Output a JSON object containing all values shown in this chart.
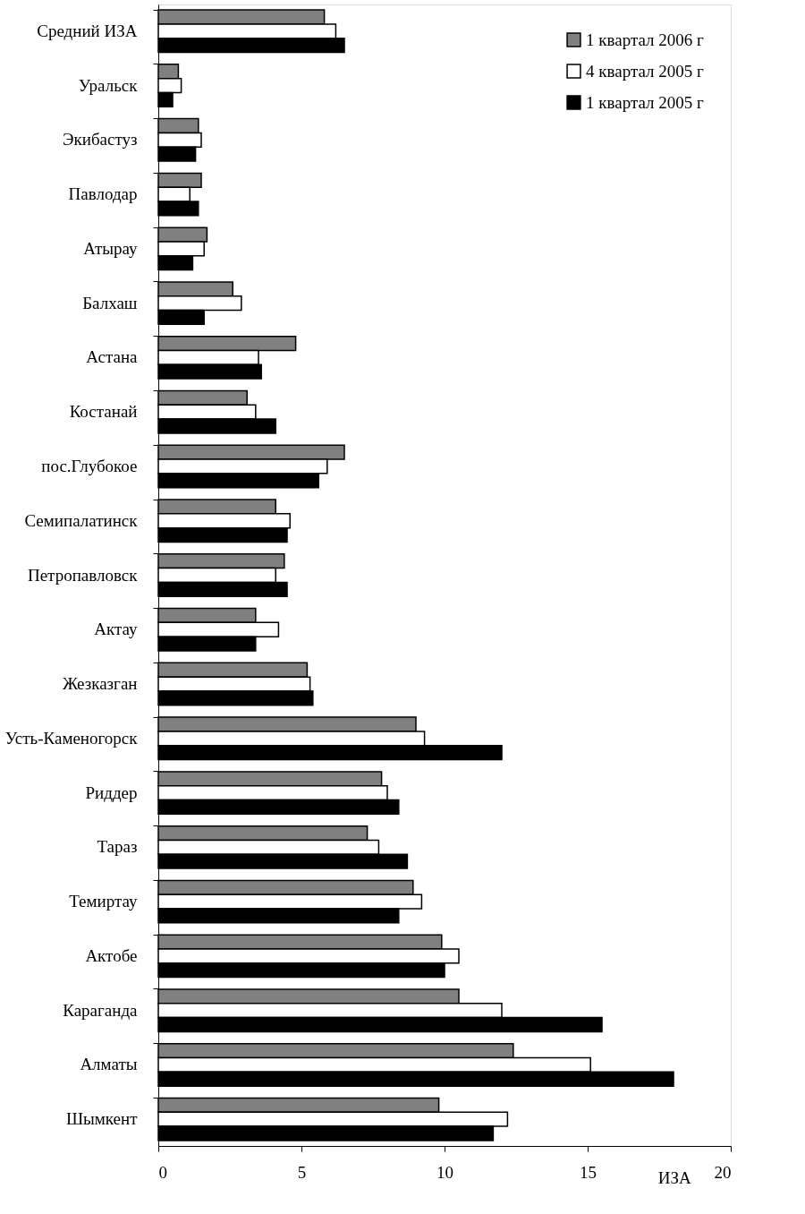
{
  "chart_data": {
    "type": "bar",
    "orientation": "horizontal",
    "xlabel": "ИЗА",
    "categories": [
      "Средний ИЗА",
      "Уральск",
      "Экибастуз",
      "Павлодар",
      "Атырау",
      "Балхаш",
      "Астана",
      "Костанай",
      "пос.Глубокое",
      "Семипалатинск",
      "Петропавловск",
      "Актау",
      "Жезказган",
      "Усть-Каменогорск",
      "Риддер",
      "Тараз",
      "Темиртау",
      "Актобе",
      "Караганда",
      "Алматы",
      "Шымкент"
    ],
    "series": [
      {
        "name": "1 квартал 2006 г",
        "color": "#808080",
        "values": [
          5.8,
          0.7,
          1.4,
          1.5,
          1.7,
          2.6,
          4.8,
          3.1,
          6.5,
          4.1,
          4.4,
          3.4,
          5.2,
          9.0,
          7.8,
          7.3,
          8.9,
          9.9,
          10.5,
          12.4,
          9.8
        ]
      },
      {
        "name": "4 квартал 2005 г",
        "color": "#ffffff",
        "values": [
          6.2,
          0.8,
          1.5,
          1.1,
          1.6,
          2.9,
          3.5,
          3.4,
          5.9,
          4.6,
          4.1,
          4.2,
          5.3,
          9.3,
          8.0,
          7.7,
          9.2,
          10.5,
          12.0,
          15.1,
          12.2
        ]
      },
      {
        "name": "1 квартал 2005 г",
        "color": "#000000",
        "values": [
          6.5,
          0.5,
          1.3,
          1.4,
          1.2,
          1.6,
          3.6,
          4.1,
          5.6,
          4.5,
          4.5,
          3.4,
          5.4,
          12.0,
          8.4,
          8.7,
          8.4,
          10.0,
          15.5,
          18.0,
          11.7
        ]
      }
    ],
    "xlim": [
      0,
      20
    ],
    "xticks": [
      0,
      5,
      10,
      15,
      20
    ],
    "grid": false,
    "legend": "top right"
  }
}
